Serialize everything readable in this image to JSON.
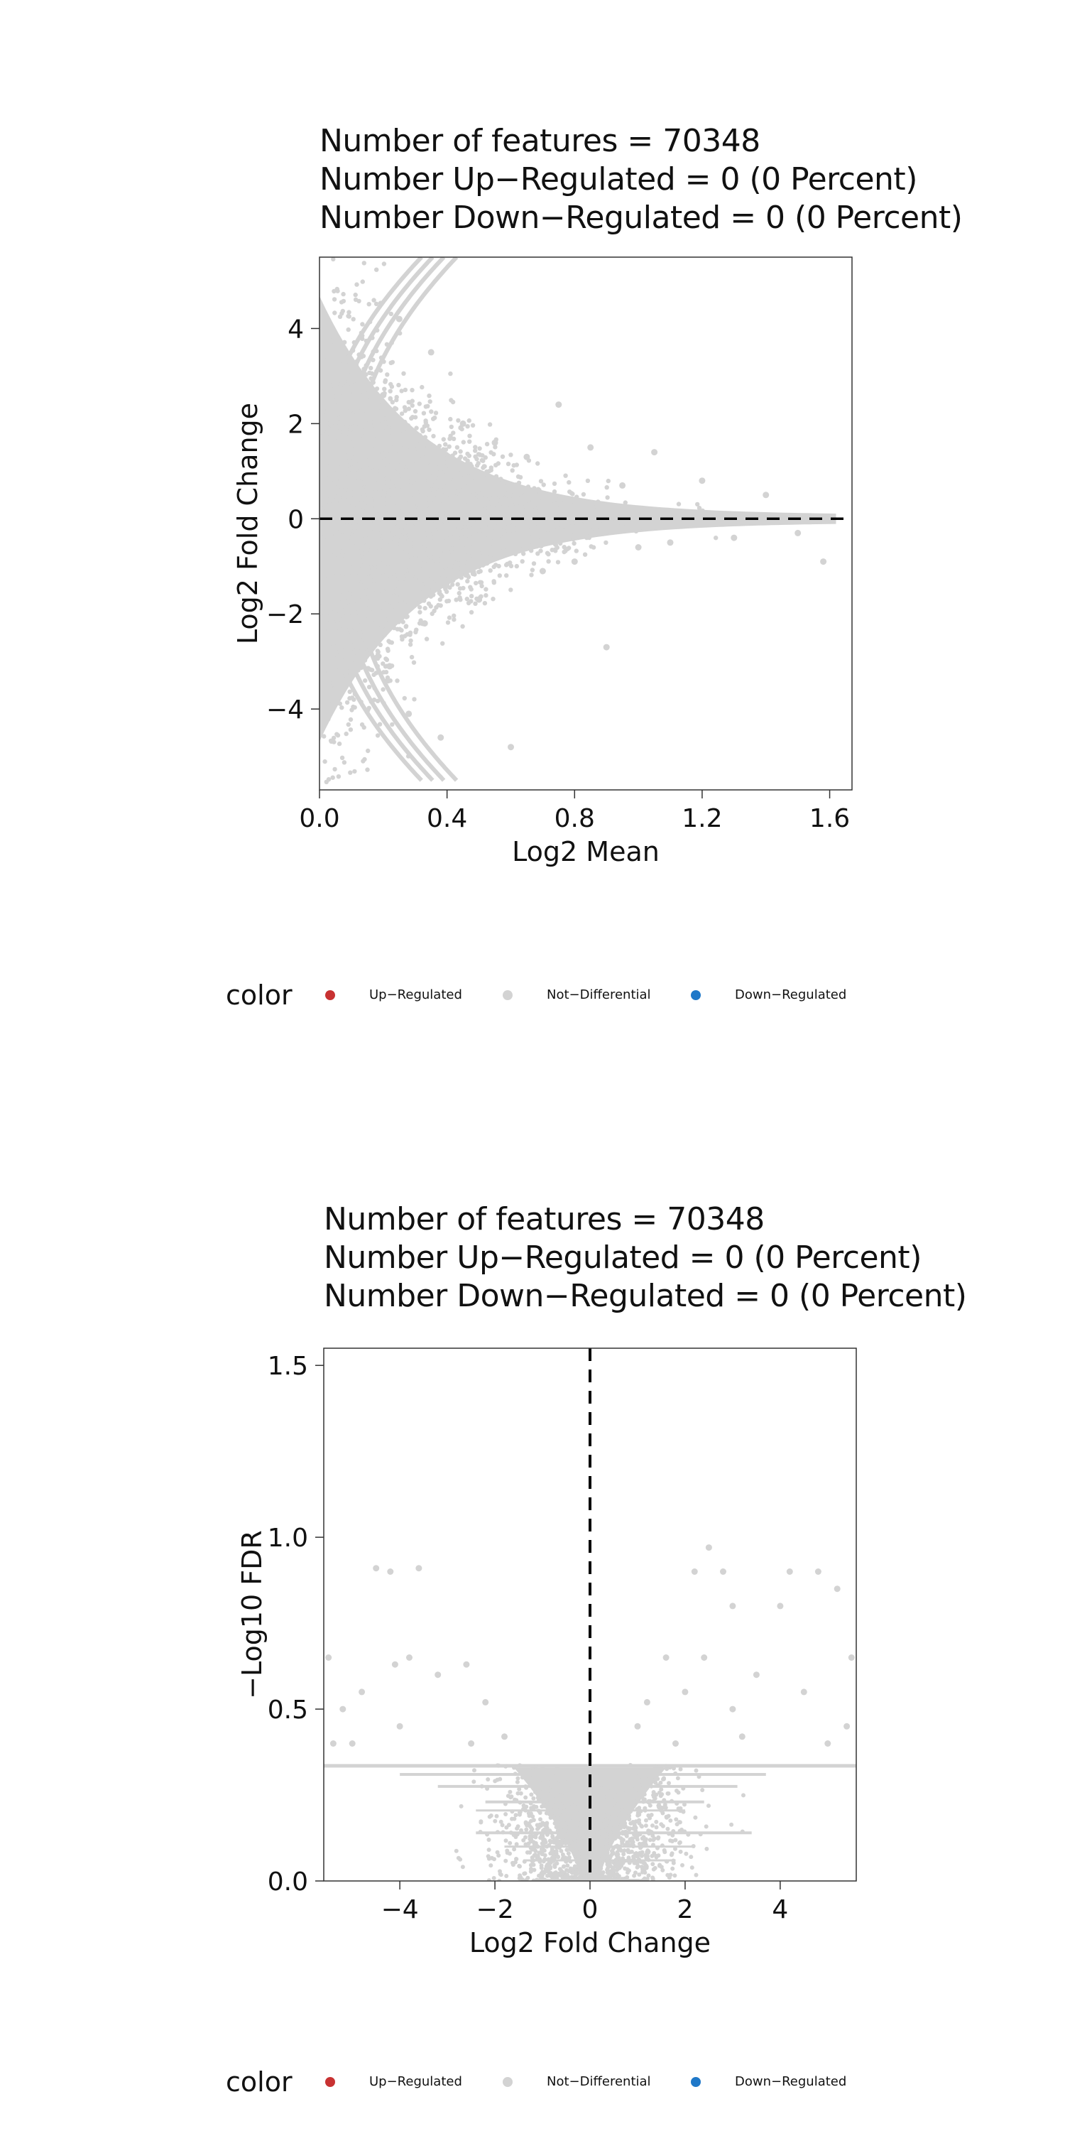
{
  "legend": {
    "title": "color",
    "items": [
      {
        "label": "Up−Regulated",
        "color": "#c83232"
      },
      {
        "label": "Not−Differential",
        "color": "#d3d3d3"
      },
      {
        "label": "Down−Regulated",
        "color": "#1f78c8"
      }
    ]
  },
  "chart_data": [
    {
      "type": "scatter",
      "title_lines": [
        "Number of features = 70348",
        "Number Up−Regulated = 0 (0 Percent)",
        "Number Down−Regulated = 0 (0 Percent)"
      ],
      "xlabel": "Log2 Mean",
      "ylabel": "Log2 Fold Change",
      "xlim": [
        0.0,
        1.67
      ],
      "ylim": [
        -5.7,
        5.5
      ],
      "xticks": [
        "0.0",
        "0.4",
        "0.8",
        "1.2",
        "1.6"
      ],
      "xtick_values": [
        0.0,
        0.4,
        0.8,
        1.2,
        1.6
      ],
      "yticks": [
        "4",
        "2",
        "0",
        "−2",
        "−4"
      ],
      "ytick_values": [
        4,
        2,
        0,
        -2,
        -4
      ],
      "reference_line": {
        "orientation": "horizontal",
        "value": 0,
        "style": "dashed"
      },
      "point_color": "#d3d3d3",
      "series": [
        {
          "name": "Not−Differential",
          "color": "#d3d3d3",
          "points": [
            [
              0.05,
              2.1
            ],
            [
              0.08,
              -1.6
            ],
            [
              0.1,
              3.2
            ],
            [
              0.12,
              -2.9
            ],
            [
              0.15,
              1.4
            ],
            [
              0.18,
              -0.8
            ],
            [
              0.2,
              2.6
            ],
            [
              0.22,
              -3.1
            ],
            [
              0.25,
              4.2
            ],
            [
              0.28,
              -4.1
            ],
            [
              0.3,
              1.1
            ],
            [
              0.33,
              -2.2
            ],
            [
              0.35,
              3.5
            ],
            [
              0.38,
              -4.6
            ],
            [
              0.4,
              0.9
            ],
            [
              0.45,
              2.0
            ],
            [
              0.5,
              -1.7
            ],
            [
              0.55,
              1.6
            ],
            [
              0.6,
              -4.8
            ],
            [
              0.65,
              1.3
            ],
            [
              0.7,
              -1.1
            ],
            [
              0.75,
              2.4
            ],
            [
              0.8,
              -0.9
            ],
            [
              0.85,
              1.5
            ],
            [
              0.9,
              -2.7
            ],
            [
              0.95,
              0.7
            ],
            [
              1.0,
              -0.6
            ],
            [
              1.05,
              1.4
            ],
            [
              1.1,
              -0.5
            ],
            [
              1.2,
              0.8
            ],
            [
              1.3,
              -0.4
            ],
            [
              1.4,
              0.5
            ],
            [
              1.5,
              -0.3
            ],
            [
              1.58,
              -0.9
            ]
          ]
        }
      ]
    },
    {
      "type": "scatter",
      "title_lines": [
        "Number of features = 70348",
        "Number Up−Regulated = 0 (0 Percent)",
        "Number Down−Regulated = 0 (0 Percent)"
      ],
      "xlabel": "Log2 Fold Change",
      "ylabel": "−Log10 FDR",
      "xlim": [
        -5.6,
        5.6
      ],
      "ylim": [
        0.0,
        1.55
      ],
      "xticks": [
        "−4",
        "−2",
        "0",
        "2",
        "4"
      ],
      "xtick_values": [
        -4,
        -2,
        0,
        2,
        4
      ],
      "yticks": [
        "1.5",
        "1.0",
        "0.5",
        "0.0"
      ],
      "ytick_values": [
        1.5,
        1.0,
        0.5,
        0.0
      ],
      "reference_line": {
        "orientation": "vertical",
        "value": 0,
        "style": "dashed"
      },
      "point_color": "#d3d3d3",
      "series": [
        {
          "name": "Not−Differential",
          "color": "#d3d3d3",
          "points": [
            [
              -4.5,
              0.91
            ],
            [
              -4.2,
              0.9
            ],
            [
              -3.6,
              0.91
            ],
            [
              -5.5,
              0.65
            ],
            [
              -4.1,
              0.63
            ],
            [
              -3.8,
              0.65
            ],
            [
              -3.2,
              0.6
            ],
            [
              -2.6,
              0.63
            ],
            [
              -5.2,
              0.5
            ],
            [
              -4.8,
              0.55
            ],
            [
              -2.2,
              0.52
            ],
            [
              -5.4,
              0.4
            ],
            [
              -5.0,
              0.4
            ],
            [
              -4.0,
              0.45
            ],
            [
              -2.5,
              0.4
            ],
            [
              -1.8,
              0.42
            ],
            [
              2.5,
              0.97
            ],
            [
              2.2,
              0.9
            ],
            [
              2.8,
              0.9
            ],
            [
              4.2,
              0.9
            ],
            [
              4.8,
              0.9
            ],
            [
              3.0,
              0.8
            ],
            [
              4.0,
              0.8
            ],
            [
              5.2,
              0.85
            ],
            [
              1.6,
              0.65
            ],
            [
              2.4,
              0.65
            ],
            [
              3.5,
              0.6
            ],
            [
              1.2,
              0.52
            ],
            [
              2.0,
              0.55
            ],
            [
              3.0,
              0.5
            ],
            [
              4.5,
              0.55
            ],
            [
              5.5,
              0.65
            ],
            [
              1.0,
              0.45
            ],
            [
              1.8,
              0.4
            ],
            [
              3.2,
              0.42
            ],
            [
              5.0,
              0.4
            ],
            [
              5.4,
              0.45
            ]
          ]
        }
      ]
    }
  ]
}
